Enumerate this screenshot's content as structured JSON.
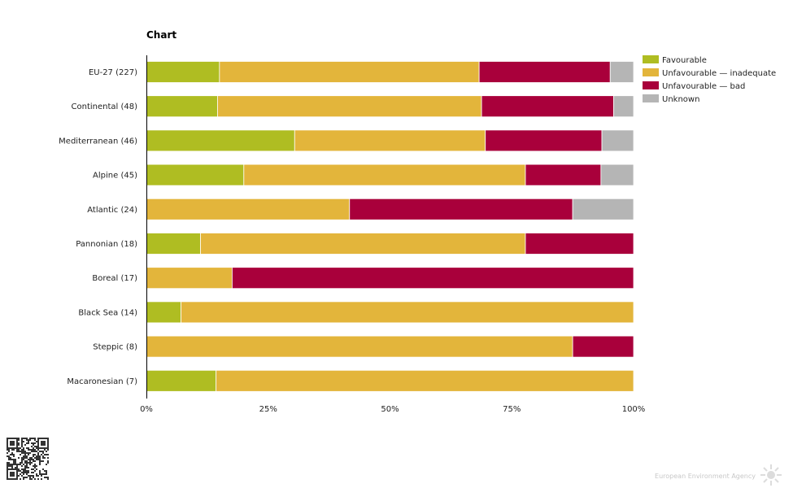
{
  "chart_data": {
    "type": "bar",
    "orientation": "horizontal",
    "stacked": "percent",
    "title": "Chart",
    "xlabel": "",
    "ylabel": "",
    "xlim": [
      0,
      100
    ],
    "x_ticks": [
      "0%",
      "25%",
      "50%",
      "75%",
      "100%"
    ],
    "grid": false,
    "legend_position": "top-right",
    "categories": [
      "EU-27 (227)",
      "Continental (48)",
      "Mediterranean (46)",
      "Alpine (45)",
      "Atlantic (24)",
      "Pannonian (18)",
      "Boreal (17)",
      "Black Sea (14)",
      "Steppic (8)",
      "Macaronesian (7)"
    ],
    "series": [
      {
        "name": "Favourable",
        "color": "#afbd22",
        "values": [
          15.0,
          14.6,
          30.4,
          20.0,
          0.0,
          11.1,
          0.0,
          7.1,
          0.0,
          14.3
        ]
      },
      {
        "name": "Unfavourable — inadequate",
        "color": "#e3b53b",
        "values": [
          53.3,
          54.2,
          39.1,
          57.8,
          41.7,
          66.7,
          17.6,
          92.9,
          87.5,
          85.7
        ]
      },
      {
        "name": "Unfavourable — bad",
        "color": "#a9003b",
        "values": [
          26.9,
          27.1,
          23.9,
          15.5,
          45.8,
          22.2,
          82.4,
          0.0,
          12.5,
          0.0
        ]
      },
      {
        "name": "Unknown",
        "color": "#b5b5b5",
        "values": [
          4.8,
          4.1,
          6.5,
          6.7,
          12.5,
          0.0,
          0.0,
          0.0,
          0.0,
          0.0
        ]
      }
    ]
  },
  "footer": {
    "agency": "European Environment Agency"
  }
}
